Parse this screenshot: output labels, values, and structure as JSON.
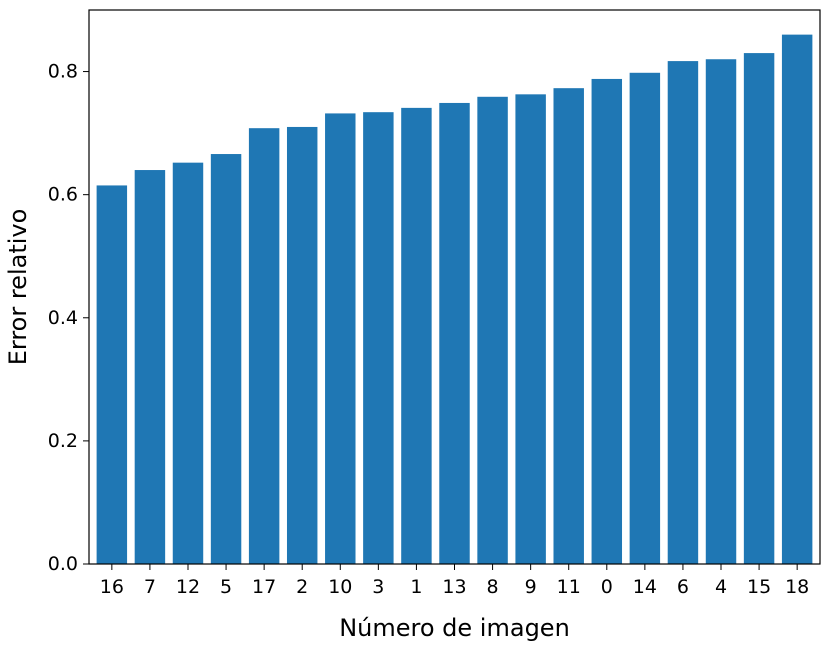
{
  "chart_data": {
    "type": "bar",
    "title": "",
    "xlabel": "Número de imagen",
    "ylabel": "Error relativo",
    "categories": [
      "16",
      "7",
      "12",
      "5",
      "17",
      "2",
      "10",
      "3",
      "1",
      "13",
      "8",
      "9",
      "11",
      "0",
      "14",
      "6",
      "4",
      "15",
      "18"
    ],
    "values": [
      0.615,
      0.64,
      0.652,
      0.666,
      0.708,
      0.71,
      0.732,
      0.734,
      0.741,
      0.749,
      0.759,
      0.763,
      0.773,
      0.788,
      0.798,
      0.817,
      0.82,
      0.83,
      0.86
    ],
    "ylim": [
      0,
      0.9
    ],
    "yticks": [
      0.0,
      0.2,
      0.4,
      0.6,
      0.8
    ],
    "ytick_labels": [
      "0.0",
      "0.2",
      "0.4",
      "0.6",
      "0.8"
    ],
    "grid": false,
    "colors": {
      "bar": "#1f77b4",
      "axis": "#000000",
      "background": "#ffffff"
    }
  }
}
